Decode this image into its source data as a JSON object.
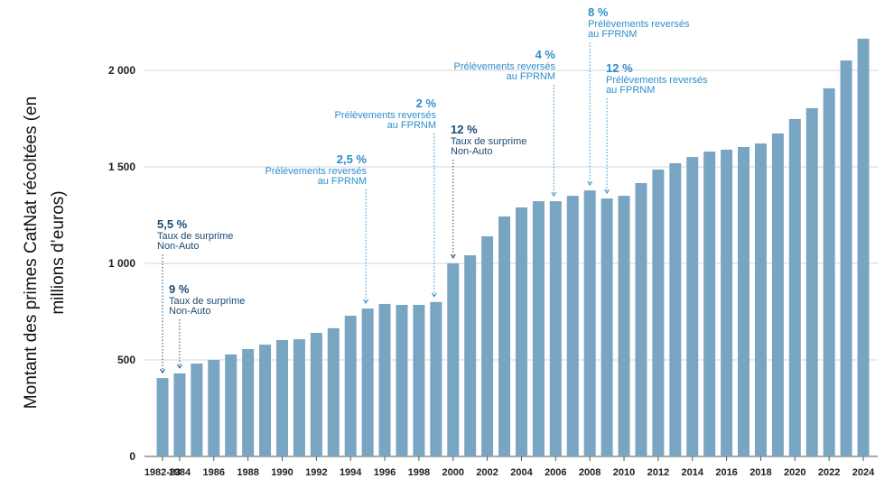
{
  "chart_data": {
    "type": "bar",
    "y_title": [
      "Montant des primes CatNat récoltées (en",
      "millions d’euros)"
    ],
    "categories": [
      "1982-83",
      "1984",
      null,
      "1986",
      null,
      "1988",
      null,
      "1990",
      null,
      "1992",
      null,
      "1994",
      null,
      "1996",
      null,
      "1998",
      null,
      "2000",
      null,
      "2002",
      null,
      "2004",
      null,
      "2006",
      null,
      "2008",
      null,
      "2010",
      null,
      "2012",
      null,
      "2014",
      null,
      "2016",
      null,
      "2018",
      null,
      "2020",
      null,
      "2022",
      null,
      "2024"
    ],
    "values": [
      406,
      430,
      481,
      500,
      528,
      556,
      579,
      603,
      607,
      640,
      664,
      729,
      766,
      790,
      785,
      785,
      800,
      1000,
      1042,
      1140,
      1243,
      1290,
      1322,
      1322,
      1350,
      1378,
      1336,
      1350,
      1416,
      1486,
      1519,
      1551,
      1579,
      1589,
      1603,
      1621,
      1673,
      1748,
      1804,
      1907,
      2051,
      2164
    ],
    "color": "#78a5c1",
    "ylim": [
      0,
      2200
    ],
    "yticks": [
      0,
      500,
      {
        "value": 1000,
        "label": "1 000"
      },
      {
        "value": 1500,
        "label": "1 500"
      },
      {
        "value": 2000,
        "label": "2 000"
      }
    ],
    "grid": true,
    "annotations": [
      {
        "percent": "5,5 %",
        "lines": [
          "Taux de surprime",
          "Non-Auto"
        ],
        "color": "#1b4a72"
      },
      {
        "percent": "9 %",
        "lines": [
          "Taux de surprime",
          "Non-Auto"
        ],
        "color": "#1b4a72"
      },
      {
        "percent": "2,5 %",
        "lines": [
          "Prélèvements reversés",
          "au FPRNM"
        ],
        "color": "#2c8fcc"
      },
      {
        "percent": "2 %",
        "lines": [
          "Prélèvements reversés",
          "au FPRNM"
        ],
        "color": "#2c8fcc"
      },
      {
        "percent": "12 %",
        "lines": [
          "Taux de surprime",
          "Non-Auto"
        ],
        "color": "#1b4a72"
      },
      {
        "percent": "4 %",
        "lines": [
          "Prélèvements reversés",
          "au FPRNM"
        ],
        "color": "#2c8fcc"
      },
      {
        "percent": "8 %",
        "lines": [
          "Prélèvements reversés",
          "au FPRNM"
        ],
        "color": "#2c8fcc"
      },
      {
        "percent": "12 %",
        "lines": [
          "Prélèvements reversés",
          "au FPRNM"
        ],
        "color": "#2c8fcc"
      }
    ]
  }
}
